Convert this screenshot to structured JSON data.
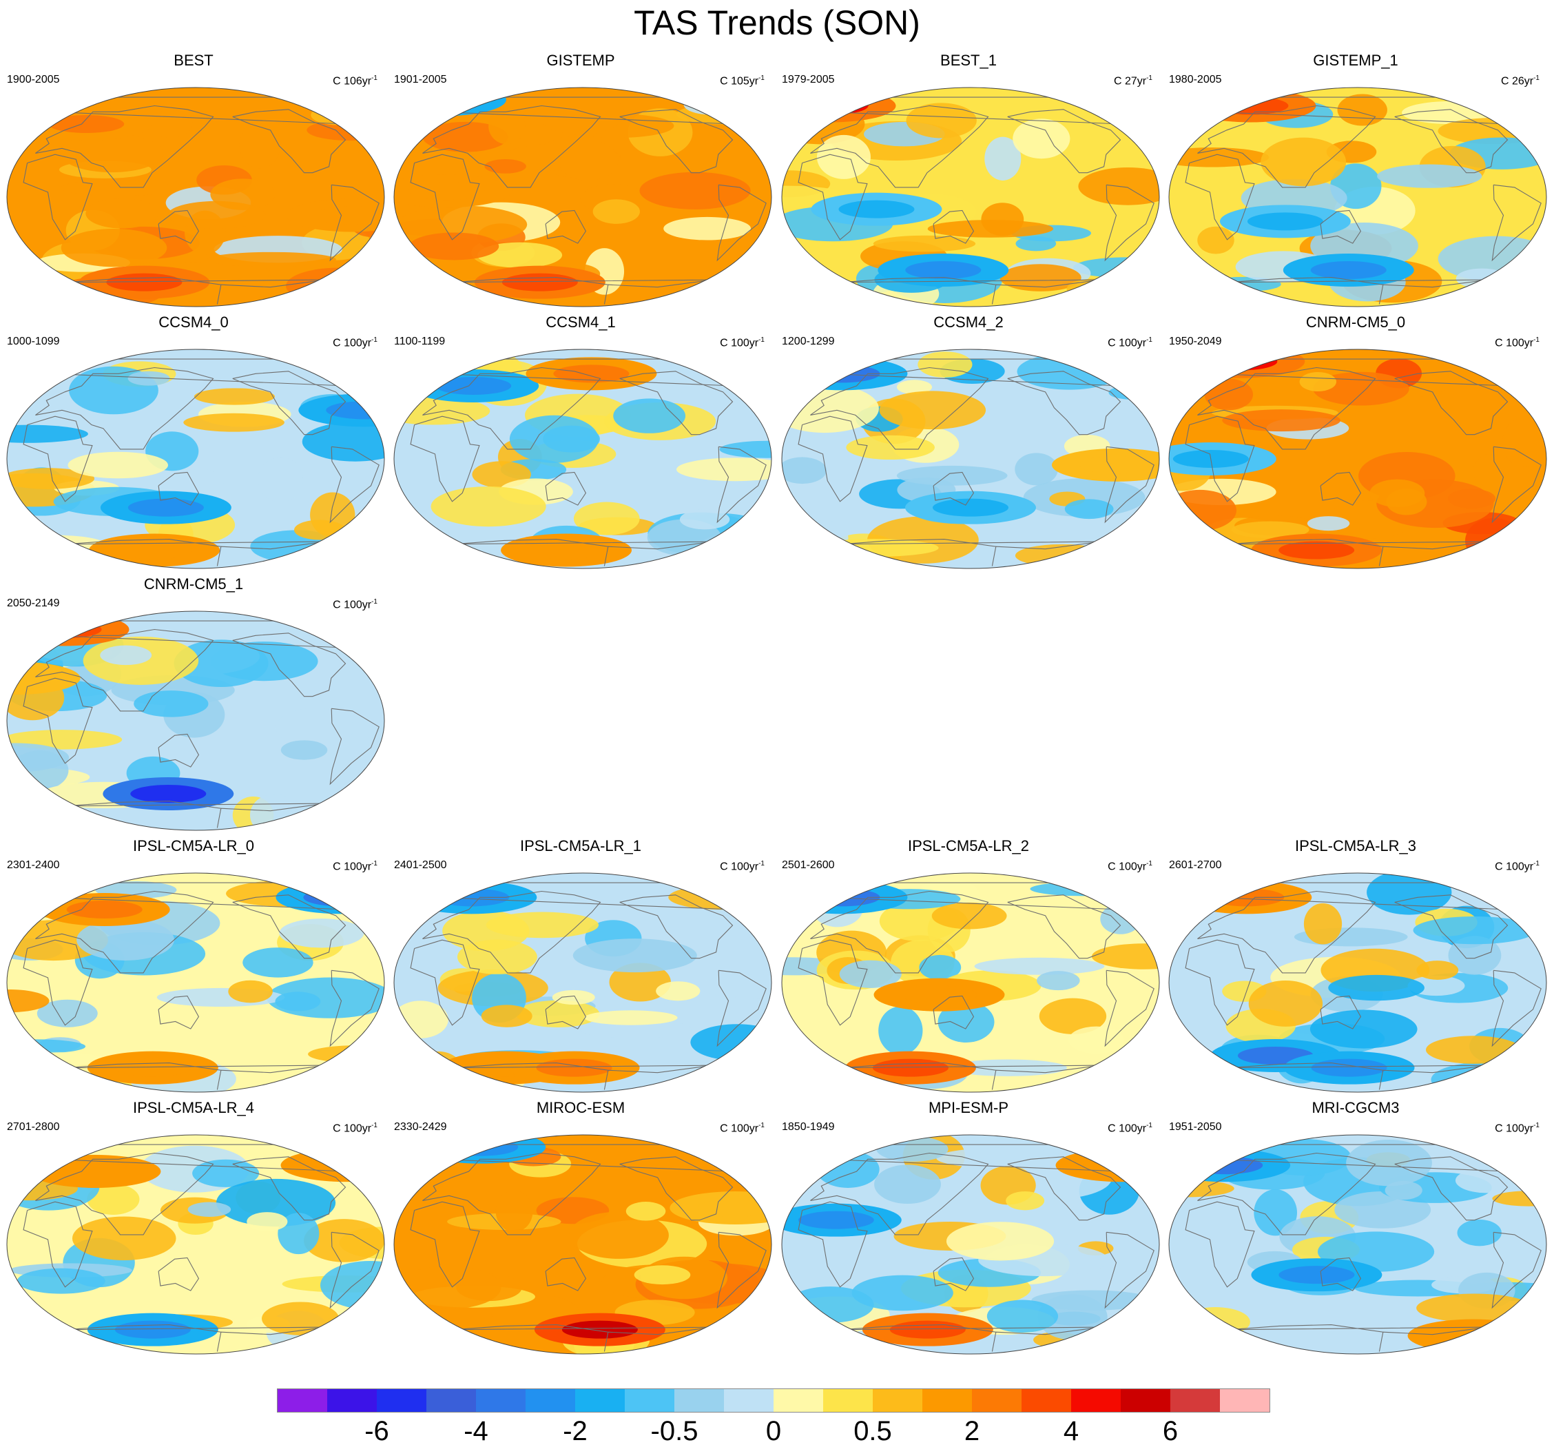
{
  "title": "TAS Trends (SON)",
  "units_prefix": "C",
  "units_suffix": "yr",
  "units_exponent": "-1",
  "panels": [
    {
      "name": "BEST",
      "period": "1900-2005",
      "units_value": "106",
      "scheme": "warm",
      "anomalies": [
        {
          "lon": 90,
          "lat": -70,
          "val": 4
        },
        {
          "lon": 30,
          "lat": 60,
          "val": 3
        },
        {
          "lon": -60,
          "lat": -15,
          "val": 2
        }
      ]
    },
    {
      "name": "GISTEMP",
      "period": "1901-2005",
      "units_value": "105",
      "scheme": "warm",
      "anomalies": [
        {
          "lon": 100,
          "lat": -70,
          "val": 4
        },
        {
          "lon": -30,
          "lat": 80,
          "val": -3
        },
        {
          "lon": 20,
          "lat": 5,
          "val": 2
        }
      ]
    },
    {
      "name": "BEST_1",
      "period": "1979-2005",
      "units_value": "27",
      "scheme": "mixed-warm",
      "anomalies": [
        {
          "lon": -20,
          "lat": 75,
          "val": 5
        },
        {
          "lon": 60,
          "lat": -10,
          "val": -1
        },
        {
          "lon": 120,
          "lat": -60,
          "val": -2
        }
      ]
    },
    {
      "name": "GISTEMP_1",
      "period": "1980-2005",
      "units_value": "26",
      "scheme": "mixed-warm",
      "anomalies": [
        {
          "lon": 20,
          "lat": 75,
          "val": 4
        },
        {
          "lon": 80,
          "lat": -20,
          "val": -1
        },
        {
          "lon": 140,
          "lat": -60,
          "val": -2
        }
      ]
    },
    {
      "name": "CCSM4_0",
      "period": "1000-1099",
      "units_value": "100",
      "scheme": "cool",
      "anomalies": [
        {
          "lon": -40,
          "lat": 40,
          "val": -2
        },
        {
          "lon": 120,
          "lat": -40,
          "val": -2
        },
        {
          "lon": 100,
          "lat": -75,
          "val": 2
        }
      ]
    },
    {
      "name": "CCSM4_1",
      "period": "1100-1199",
      "units_value": "100",
      "scheme": "cool",
      "anomalies": [
        {
          "lon": 30,
          "lat": 60,
          "val": -2
        },
        {
          "lon": 160,
          "lat": 70,
          "val": 3
        },
        {
          "lon": 130,
          "lat": -75,
          "val": 2
        }
      ]
    },
    {
      "name": "CCSM4_2",
      "period": "1200-1299",
      "units_value": "100",
      "scheme": "cool",
      "anomalies": [
        {
          "lon": 0,
          "lat": 70,
          "val": -3
        },
        {
          "lon": -70,
          "lat": -5,
          "val": 1
        },
        {
          "lon": 150,
          "lat": -40,
          "val": -1
        }
      ]
    },
    {
      "name": "CNRM-CM5_0",
      "period": "1950-2049",
      "units_value": "100",
      "scheme": "hot",
      "anomalies": [
        {
          "lon": 0,
          "lat": 80,
          "val": 5
        },
        {
          "lon": 100,
          "lat": -75,
          "val": 4
        },
        {
          "lon": 10,
          "lat": 0,
          "val": -1
        }
      ]
    },
    {
      "name": "CNRM-CM5_1",
      "period": "2050-2149",
      "units_value": "100",
      "scheme": "cool",
      "anomalies": [
        {
          "lon": -10,
          "lat": 75,
          "val": 4
        },
        {
          "lon": 120,
          "lat": -60,
          "val": -5
        },
        {
          "lon": -30,
          "lat": 35,
          "val": 1
        }
      ]
    },
    {
      "name": "IPSL-CM5A-LR_0",
      "period": "2301-2400",
      "units_value": "100",
      "scheme": "neutral",
      "anomalies": [
        {
          "lon": -40,
          "lat": 70,
          "val": -3
        },
        {
          "lon": 50,
          "lat": 60,
          "val": 3
        },
        {
          "lon": 100,
          "lat": -70,
          "val": 2
        }
      ]
    },
    {
      "name": "IPSL-CM5A-LR_1",
      "period": "2401-2500",
      "units_value": "100",
      "scheme": "cool",
      "anomalies": [
        {
          "lon": 20,
          "lat": 70,
          "val": -2
        },
        {
          "lon": 60,
          "lat": -70,
          "val": 2
        },
        {
          "lon": 140,
          "lat": -70,
          "val": 3
        }
      ]
    },
    {
      "name": "IPSL-CM5A-LR_2",
      "period": "2501-2600",
      "units_value": "100",
      "scheme": "neutral",
      "anomalies": [
        {
          "lon": 0,
          "lat": 70,
          "val": -3
        },
        {
          "lon": 80,
          "lat": -70,
          "val": 4
        },
        {
          "lon": 120,
          "lat": -10,
          "val": 2
        }
      ]
    },
    {
      "name": "IPSL-CM5A-LR_3",
      "period": "2601-2700",
      "units_value": "100",
      "scheme": "cool",
      "anomalies": [
        {
          "lon": 20,
          "lat": 70,
          "val": 3
        },
        {
          "lon": 60,
          "lat": -60,
          "val": -3
        },
        {
          "lon": 140,
          "lat": -70,
          "val": -2
        }
      ]
    },
    {
      "name": "IPSL-CM5A-LR_4",
      "period": "2701-2800",
      "units_value": "100",
      "scheme": "neutral",
      "anomalies": [
        {
          "lon": -40,
          "lat": 65,
          "val": 2
        },
        {
          "lon": 40,
          "lat": 60,
          "val": 2
        },
        {
          "lon": 100,
          "lat": -70,
          "val": -2
        }
      ]
    },
    {
      "name": "MIROC-ESM",
      "period": "2330-2429",
      "units_value": "100",
      "scheme": "warm",
      "anomalies": [
        {
          "lon": 170,
          "lat": -70,
          "val": 6
        },
        {
          "lon": 20,
          "lat": 80,
          "val": -2
        },
        {
          "lon": -60,
          "lat": 30,
          "val": 1
        }
      ]
    },
    {
      "name": "MPI-ESM-P",
      "period": "1850-1949",
      "units_value": "100",
      "scheme": "cool",
      "anomalies": [
        {
          "lon": 100,
          "lat": -70,
          "val": 4
        },
        {
          "lon": 20,
          "lat": 20,
          "val": -2
        },
        {
          "lon": -40,
          "lat": 65,
          "val": 2
        }
      ]
    },
    {
      "name": "MRI-CGCM3",
      "period": "1951-2050",
      "units_value": "100",
      "scheme": "cool",
      "anomalies": [
        {
          "lon": 0,
          "lat": 65,
          "val": -3
        },
        {
          "lon": 110,
          "lat": -25,
          "val": -2
        },
        {
          "lon": -70,
          "lat": -75,
          "val": 2
        }
      ]
    }
  ],
  "colorbar": {
    "colors": [
      "#8d1ee8",
      "#3c13e8",
      "#1f2ff0",
      "#3a5fd9",
      "#2f78e8",
      "#2291f0",
      "#19b0f2",
      "#4dc4f5",
      "#99d2ee",
      "#bfe1f5",
      "#fff9a8",
      "#fde44a",
      "#fdbb1a",
      "#fc9900",
      "#fc7a05",
      "#fb4b00",
      "#f50a00",
      "#cc0000",
      "#d53a3a",
      "#ffb6b6"
    ],
    "labels": [
      "-6",
      "-4",
      "-2",
      "-0.5",
      "0",
      "0.5",
      "2",
      "4",
      "6"
    ]
  }
}
